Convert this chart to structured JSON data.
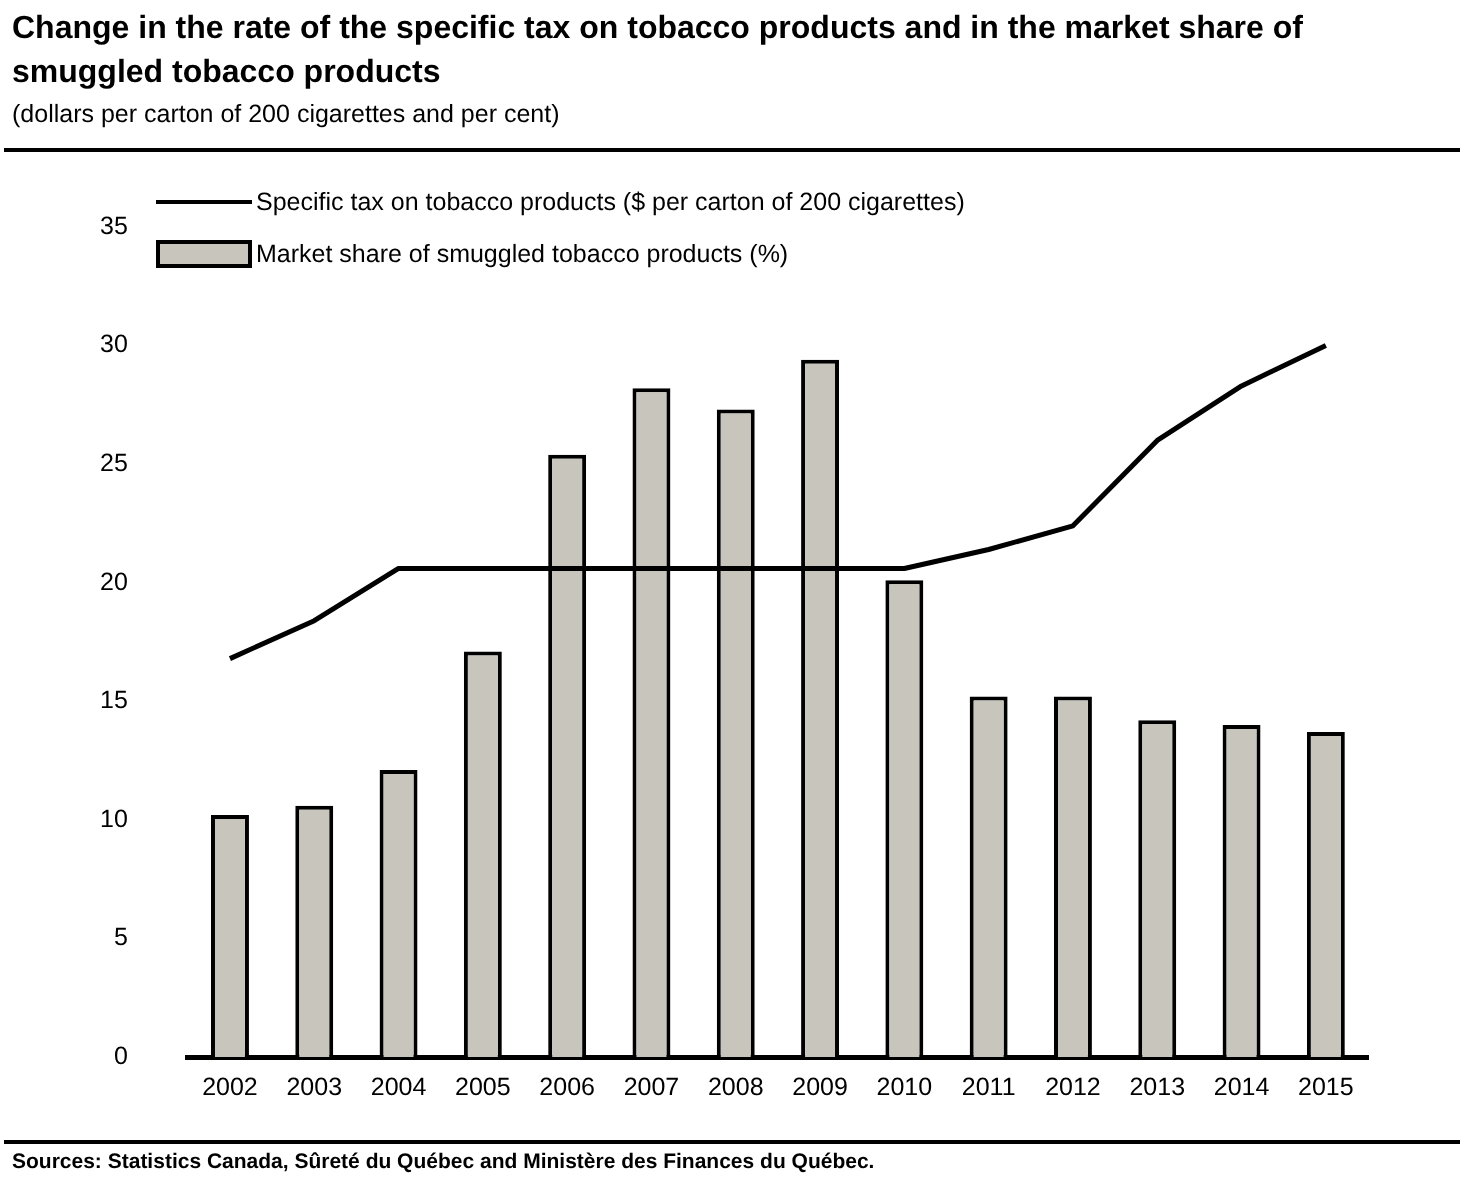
{
  "chart_data": {
    "type": "bar",
    "title": "Change in the rate of the specific tax on tobacco products and in the market share of smuggled tobacco products",
    "subtitle": "(dollars per carton of 200 cigarettes and per cent)",
    "categories": [
      "2002",
      "2003",
      "2004",
      "2005",
      "2006",
      "2007",
      "2008",
      "2009",
      "2010",
      "2011",
      "2012",
      "2013",
      "2014",
      "2015"
    ],
    "series": [
      {
        "name": "Specific tax on tobacco products ($ per carton of 200 cigarettes)",
        "type": "line",
        "color": "#000000",
        "values": [
          16.8,
          18.4,
          20.6,
          20.6,
          20.6,
          20.6,
          20.6,
          20.6,
          20.6,
          21.4,
          22.4,
          26.0,
          28.3,
          30.0
        ]
      },
      {
        "name": "Market share of smuggled tobacco products (%)",
        "color": "#c8c5bd",
        "values": [
          10.2,
          10.6,
          12.1,
          17.1,
          25.4,
          28.2,
          27.3,
          29.4,
          20.1,
          15.2,
          15.2,
          14.2,
          14.0,
          13.7
        ]
      }
    ],
    "ylim": [
      0,
      35
    ],
    "yticks": [
      0,
      5,
      10,
      15,
      20,
      25,
      30,
      35
    ],
    "grid": false,
    "legend": "top left",
    "marker": "none",
    "annotations": [
      "Sources:  Statistics Canada, Sûreté du Québec and Ministère des Finances du Québec."
    ]
  }
}
